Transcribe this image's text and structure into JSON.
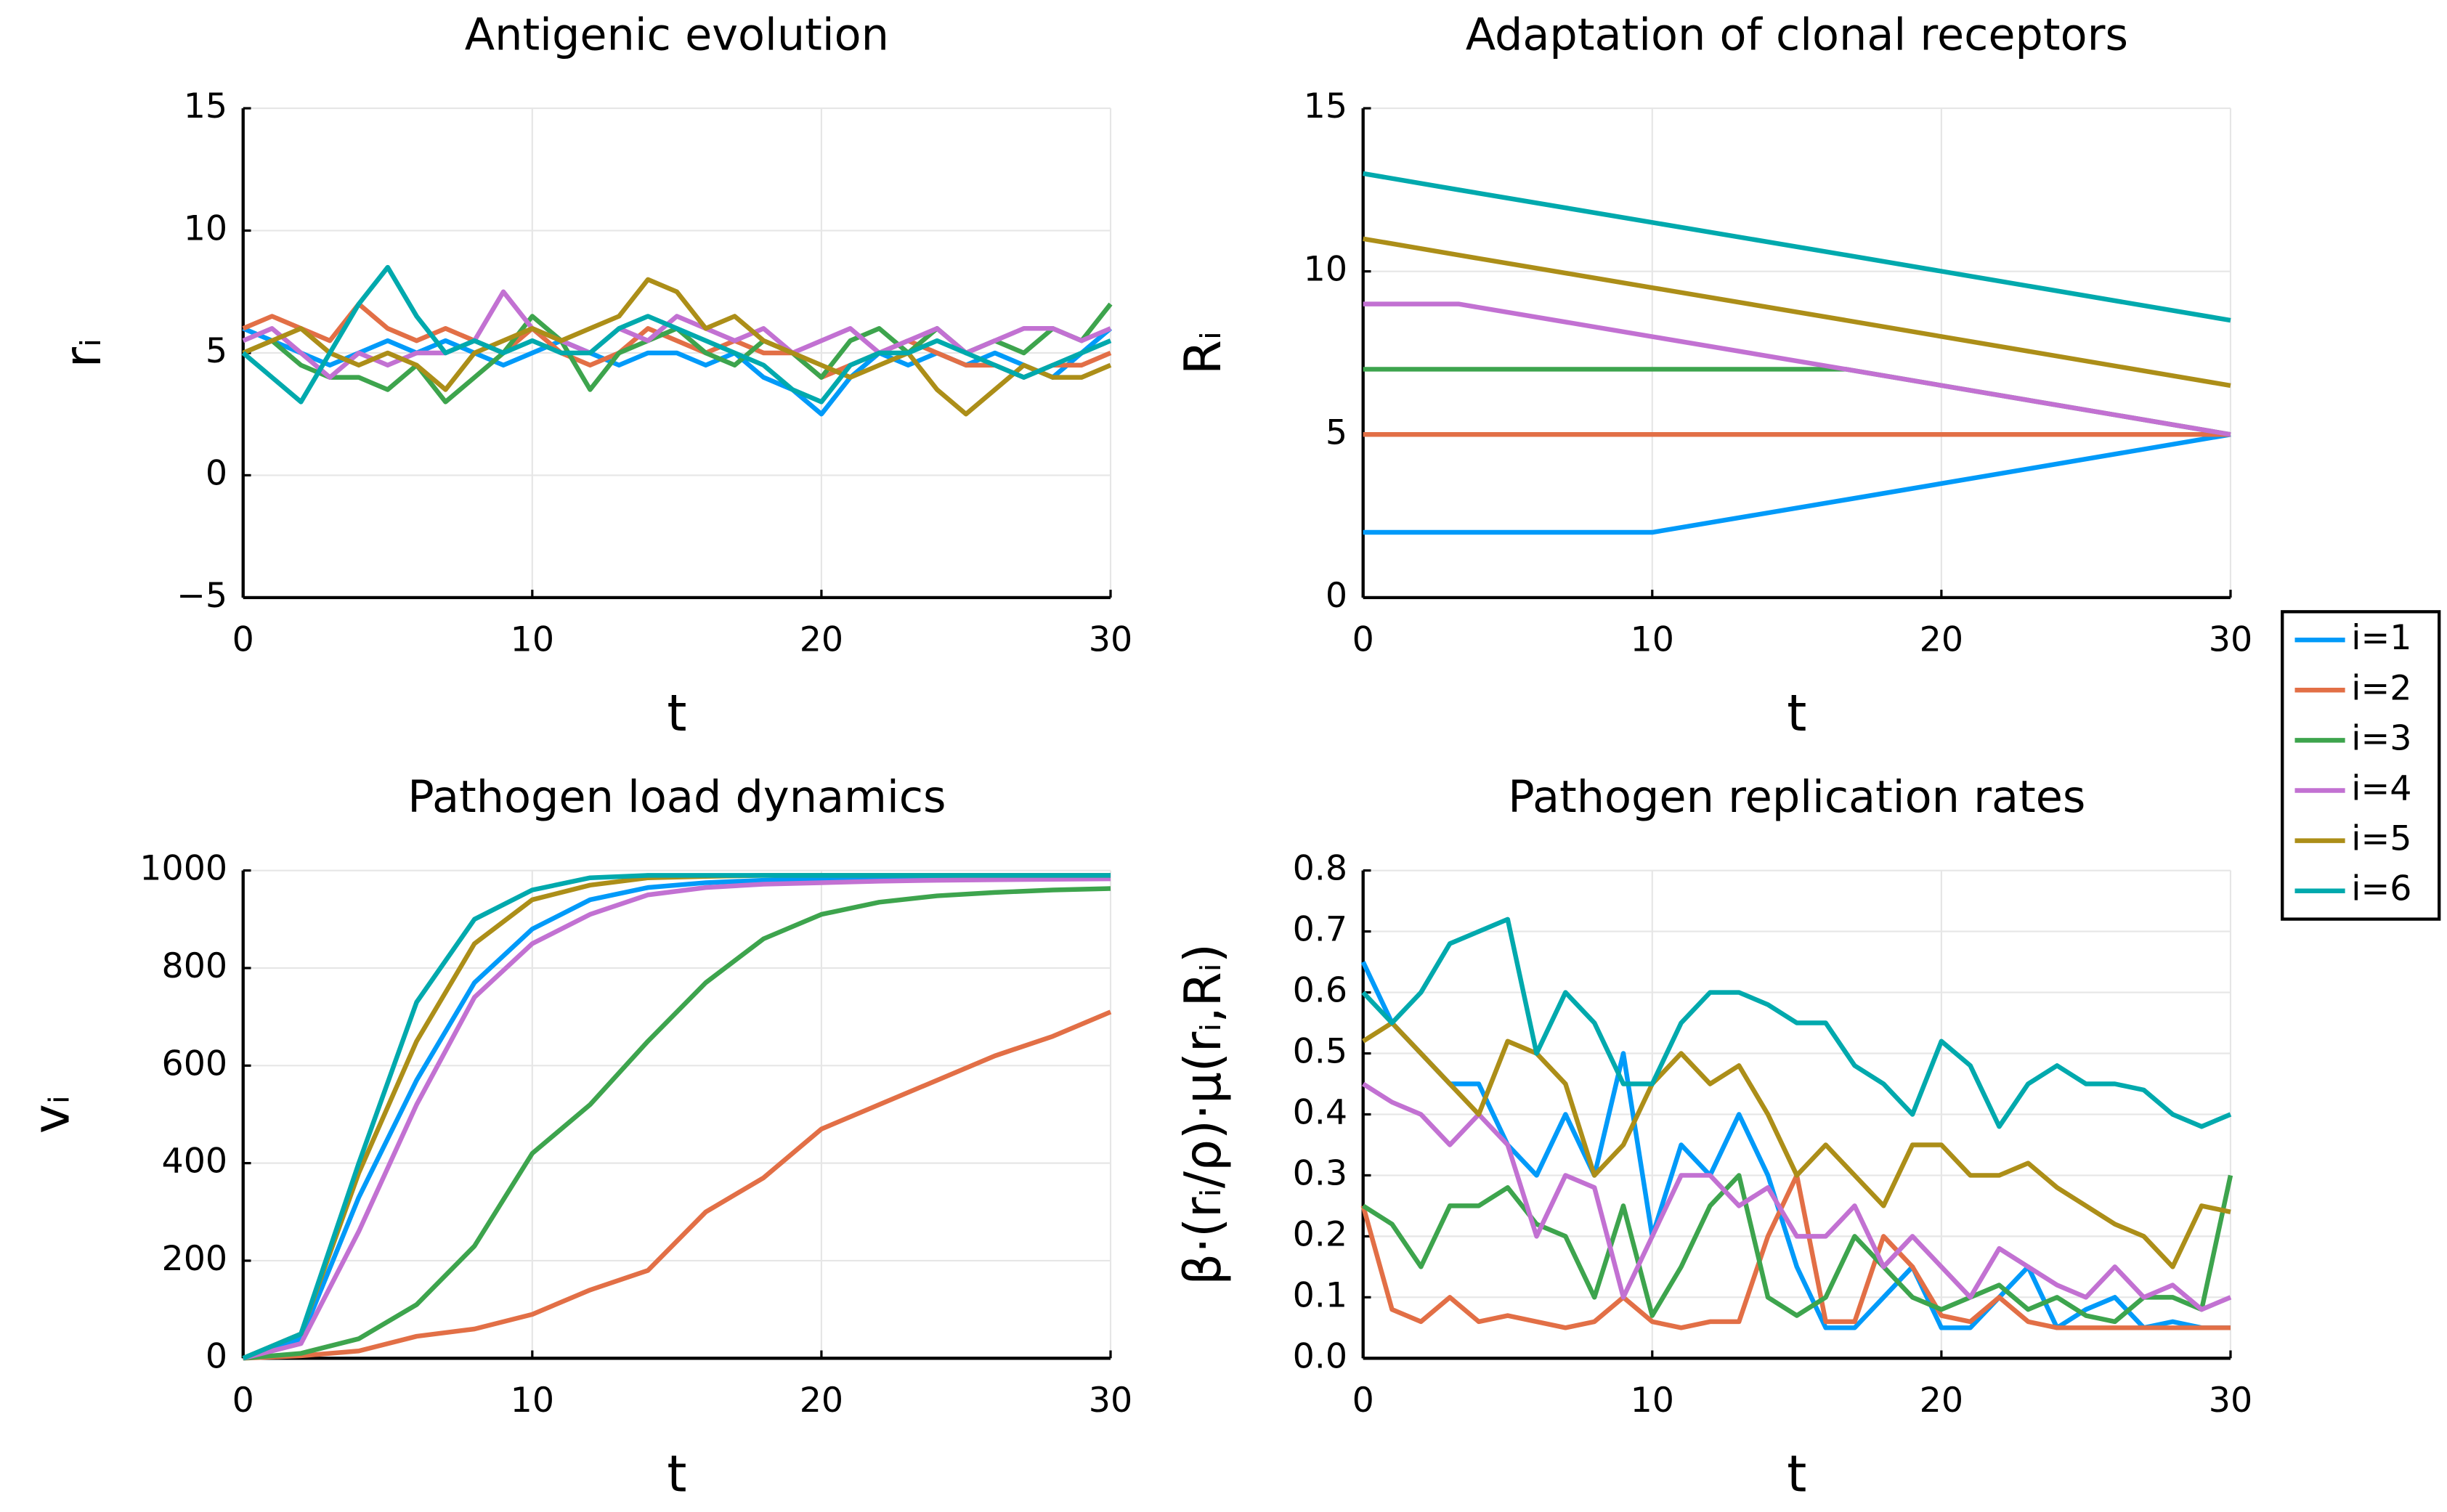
{
  "chart_data": [
    {
      "type": "line",
      "title": "Antigenic evolution",
      "xlabel": "t",
      "ylabel": "rᵢ",
      "xlim": [
        0,
        30
      ],
      "xticks": [
        0,
        10,
        20,
        30
      ],
      "ylim": [
        -5,
        15
      ],
      "yticks": [
        {
          "value": -5,
          "label": "−5"
        },
        0,
        5,
        10,
        15
      ],
      "grid": true,
      "x": [
        0,
        1,
        2,
        3,
        4,
        5,
        6,
        7,
        8,
        9,
        10,
        11,
        12,
        13,
        14,
        15,
        16,
        17,
        18,
        19,
        20,
        21,
        22,
        23,
        24,
        25,
        26,
        27,
        28,
        29,
        30
      ],
      "series": [
        {
          "name": "i=1",
          "color": "#009af9",
          "values": [
            6,
            5.5,
            5,
            4.5,
            5,
            5.5,
            5,
            5.5,
            5,
            4.5,
            5,
            5.5,
            5,
            4.5,
            5,
            5,
            4.5,
            5,
            4,
            3.5,
            2.5,
            4,
            5,
            4.5,
            5,
            4.5,
            5,
            4.5,
            4,
            5,
            6
          ]
        },
        {
          "name": "i=2",
          "color": "#e26f46",
          "values": [
            6,
            6.5,
            6,
            5.5,
            7,
            6,
            5.5,
            6,
            5.5,
            5,
            6,
            5,
            4.5,
            5,
            6,
            5.5,
            5,
            5.5,
            5,
            5,
            4,
            4.5,
            5,
            5.5,
            5,
            4.5,
            4.5,
            4,
            4.5,
            4.5,
            5
          ]
        },
        {
          "name": "i=3",
          "color": "#3da44d",
          "values": [
            5,
            5.5,
            4.5,
            4,
            4,
            3.5,
            4.5,
            3,
            4,
            5,
            6.5,
            5.5,
            3.5,
            5,
            5.5,
            6,
            5,
            4.5,
            5.5,
            5,
            4,
            5.5,
            6,
            5,
            6,
            5,
            5.5,
            5,
            6,
            5.5,
            7
          ]
        },
        {
          "name": "i=4",
          "color": "#c271d2",
          "values": [
            5.5,
            6,
            5,
            4,
            5,
            4.5,
            5,
            5,
            5.5,
            7.5,
            6,
            5.5,
            5,
            6,
            5.5,
            6.5,
            6,
            5.5,
            6,
            5,
            5.5,
            6,
            5,
            5.5,
            6,
            5,
            5.5,
            6,
            6,
            5.5,
            6
          ]
        },
        {
          "name": "i=5",
          "color": "#ac8e18",
          "values": [
            5,
            5.5,
            6,
            5,
            4.5,
            5,
            4.5,
            3.5,
            5,
            5.5,
            6,
            5.5,
            6,
            6.5,
            8,
            7.5,
            6,
            6.5,
            5.5,
            5,
            4.5,
            4,
            4.5,
            5,
            3.5,
            2.5,
            3.5,
            4.5,
            4,
            4,
            4.5
          ]
        },
        {
          "name": "i=6",
          "color": "#00a9ad",
          "values": [
            5,
            4,
            3,
            5,
            7,
            8.5,
            6.5,
            5,
            5.5,
            5,
            5.5,
            5,
            5,
            6,
            6.5,
            6,
            5.5,
            5,
            4.5,
            3.5,
            3,
            4.5,
            5,
            5,
            5.5,
            5,
            4.5,
            4,
            4.5,
            5,
            5.5
          ]
        }
      ]
    },
    {
      "type": "line",
      "title": "Adaptation of clonal receptors",
      "xlabel": "t",
      "ylabel": "Rᵢ",
      "xlim": [
        0,
        30
      ],
      "xticks": [
        0,
        10,
        20,
        30
      ],
      "ylim": [
        0,
        15
      ],
      "yticks": [
        0,
        5,
        10,
        15
      ],
      "grid": true,
      "x": [
        0,
        3.3,
        10,
        16.7,
        30
      ],
      "series": [
        {
          "name": "i=1",
          "color": "#009af9",
          "values": [
            2,
            2,
            2,
            3,
            5
          ]
        },
        {
          "name": "i=2",
          "color": "#e26f46",
          "values": [
            5,
            5,
            5,
            5,
            5
          ]
        },
        {
          "name": "i=3",
          "color": "#3da44d",
          "values": [
            7,
            7,
            7,
            7,
            5
          ]
        },
        {
          "name": "i=4",
          "color": "#c271d2",
          "values": [
            9,
            9,
            8,
            7,
            5
          ]
        },
        {
          "name": "i=5",
          "color": "#ac8e18",
          "values": [
            11,
            10.5,
            9.5,
            8.5,
            6.5
          ]
        },
        {
          "name": "i=6",
          "color": "#00a9ad",
          "values": [
            13,
            12.5,
            11.5,
            10.5,
            8.5
          ]
        }
      ],
      "legend": "outside right"
    },
    {
      "type": "line",
      "title": "Pathogen load dynamics",
      "xlabel": "t",
      "ylabel": "vᵢ",
      "xlim": [
        0,
        30
      ],
      "xticks": [
        0,
        10,
        20,
        30
      ],
      "ylim": [
        0,
        1000
      ],
      "yticks": [
        0,
        200,
        400,
        600,
        800,
        1000
      ],
      "grid": true,
      "x": [
        0,
        2,
        4,
        6,
        8,
        10,
        12,
        14,
        16,
        18,
        20,
        22,
        24,
        26,
        28,
        30
      ],
      "series": [
        {
          "name": "i=1",
          "color": "#009af9",
          "values": [
            0,
            40,
            330,
            570,
            770,
            880,
            940,
            965,
            975,
            980,
            983,
            985,
            986,
            987,
            988,
            988
          ]
        },
        {
          "name": "i=2",
          "color": "#e26f46",
          "values": [
            0,
            5,
            15,
            45,
            60,
            90,
            140,
            180,
            300,
            370,
            470,
            520,
            570,
            620,
            660,
            710
          ]
        },
        {
          "name": "i=3",
          "color": "#3da44d",
          "values": [
            0,
            10,
            40,
            110,
            230,
            420,
            520,
            650,
            770,
            860,
            910,
            935,
            948,
            955,
            960,
            963
          ]
        },
        {
          "name": "i=4",
          "color": "#c271d2",
          "values": [
            0,
            30,
            260,
            520,
            740,
            850,
            910,
            950,
            965,
            972,
            975,
            978,
            980,
            981,
            982,
            983
          ]
        },
        {
          "name": "i=5",
          "color": "#ac8e18",
          "values": [
            0,
            50,
            380,
            650,
            850,
            940,
            970,
            985,
            988,
            990,
            990,
            990,
            990,
            990,
            990,
            990
          ]
        },
        {
          "name": "i=6",
          "color": "#00a9ad",
          "values": [
            0,
            50,
            400,
            730,
            900,
            960,
            985,
            990,
            990,
            990,
            990,
            990,
            990,
            990,
            990,
            990
          ]
        }
      ]
    },
    {
      "type": "line",
      "title": "Pathogen replication rates",
      "xlabel": "t",
      "ylabel": "β·(rᵢ/ρ)·μ(rᵢ,Rᵢ)",
      "xlim": [
        0,
        30
      ],
      "xticks": [
        0,
        10,
        20,
        30
      ],
      "ylim": [
        0,
        0.8
      ],
      "yticks": [
        {
          "value": 0,
          "label": "0.0"
        },
        0.1,
        0.2,
        0.3,
        0.4,
        0.5,
        0.6,
        0.7,
        0.8
      ],
      "grid": true,
      "x": [
        0,
        1,
        2,
        3,
        4,
        5,
        6,
        7,
        8,
        9,
        10,
        11,
        12,
        13,
        14,
        15,
        16,
        17,
        18,
        19,
        20,
        21,
        22,
        23,
        24,
        25,
        26,
        27,
        28,
        29,
        30
      ],
      "series": [
        {
          "name": "i=1",
          "color": "#009af9",
          "values": [
            0.65,
            0.55,
            0.5,
            0.45,
            0.45,
            0.35,
            0.3,
            0.4,
            0.3,
            0.5,
            0.2,
            0.35,
            0.3,
            0.4,
            0.3,
            0.15,
            0.05,
            0.05,
            0.1,
            0.15,
            0.05,
            0.05,
            0.1,
            0.15,
            0.05,
            0.08,
            0.1,
            0.05,
            0.06,
            0.05,
            0.05
          ]
        },
        {
          "name": "i=2",
          "color": "#e26f46",
          "values": [
            0.25,
            0.08,
            0.06,
            0.1,
            0.06,
            0.07,
            0.06,
            0.05,
            0.06,
            0.1,
            0.06,
            0.05,
            0.06,
            0.06,
            0.2,
            0.3,
            0.06,
            0.06,
            0.2,
            0.15,
            0.07,
            0.06,
            0.1,
            0.06,
            0.05,
            0.05,
            0.05,
            0.05,
            0.05,
            0.05,
            0.05
          ]
        },
        {
          "name": "i=3",
          "color": "#3da44d",
          "values": [
            0.25,
            0.22,
            0.15,
            0.25,
            0.25,
            0.28,
            0.22,
            0.2,
            0.1,
            0.25,
            0.07,
            0.15,
            0.25,
            0.3,
            0.1,
            0.07,
            0.1,
            0.2,
            0.15,
            0.1,
            0.08,
            0.1,
            0.12,
            0.08,
            0.1,
            0.07,
            0.06,
            0.1,
            0.1,
            0.08,
            0.3
          ]
        },
        {
          "name": "i=4",
          "color": "#c271d2",
          "values": [
            0.45,
            0.42,
            0.4,
            0.35,
            0.4,
            0.35,
            0.2,
            0.3,
            0.28,
            0.1,
            0.2,
            0.3,
            0.3,
            0.25,
            0.28,
            0.2,
            0.2,
            0.25,
            0.15,
            0.2,
            0.15,
            0.1,
            0.18,
            0.15,
            0.12,
            0.1,
            0.15,
            0.1,
            0.12,
            0.08,
            0.1
          ]
        },
        {
          "name": "i=5",
          "color": "#ac8e18",
          "values": [
            0.52,
            0.55,
            0.5,
            0.45,
            0.4,
            0.52,
            0.5,
            0.45,
            0.3,
            0.35,
            0.45,
            0.5,
            0.45,
            0.48,
            0.4,
            0.3,
            0.35,
            0.3,
            0.25,
            0.35,
            0.35,
            0.3,
            0.3,
            0.32,
            0.28,
            0.25,
            0.22,
            0.2,
            0.15,
            0.25,
            0.24
          ]
        },
        {
          "name": "i=6",
          "color": "#00a9ad",
          "values": [
            0.6,
            0.55,
            0.6,
            0.68,
            0.7,
            0.72,
            0.5,
            0.6,
            0.55,
            0.45,
            0.45,
            0.55,
            0.6,
            0.6,
            0.58,
            0.55,
            0.55,
            0.48,
            0.45,
            0.4,
            0.52,
            0.48,
            0.38,
            0.45,
            0.48,
            0.45,
            0.45,
            0.44,
            0.4,
            0.38,
            0.4
          ]
        }
      ]
    }
  ]
}
